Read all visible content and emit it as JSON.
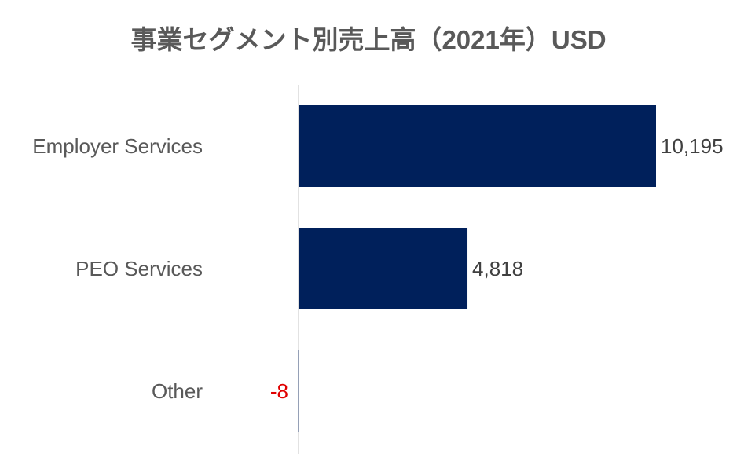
{
  "chart_data": {
    "type": "bar",
    "orientation": "horizontal",
    "title": "事業セグメント別売上高（2021年）USD",
    "categories": [
      "Employer Services",
      "PEO Services",
      "Other"
    ],
    "values": [
      10195,
      4818,
      -8
    ],
    "value_labels": [
      "10,195",
      "4,818",
      "-8"
    ],
    "xlabel": "",
    "ylabel": "",
    "xlim": [
      0,
      10195
    ],
    "grid": false,
    "legend": "none",
    "colors": {
      "bar": "#00205b",
      "negative_label": "#e00000",
      "label": "#404040",
      "title": "#595959",
      "axis": "#d9d9d9"
    }
  }
}
